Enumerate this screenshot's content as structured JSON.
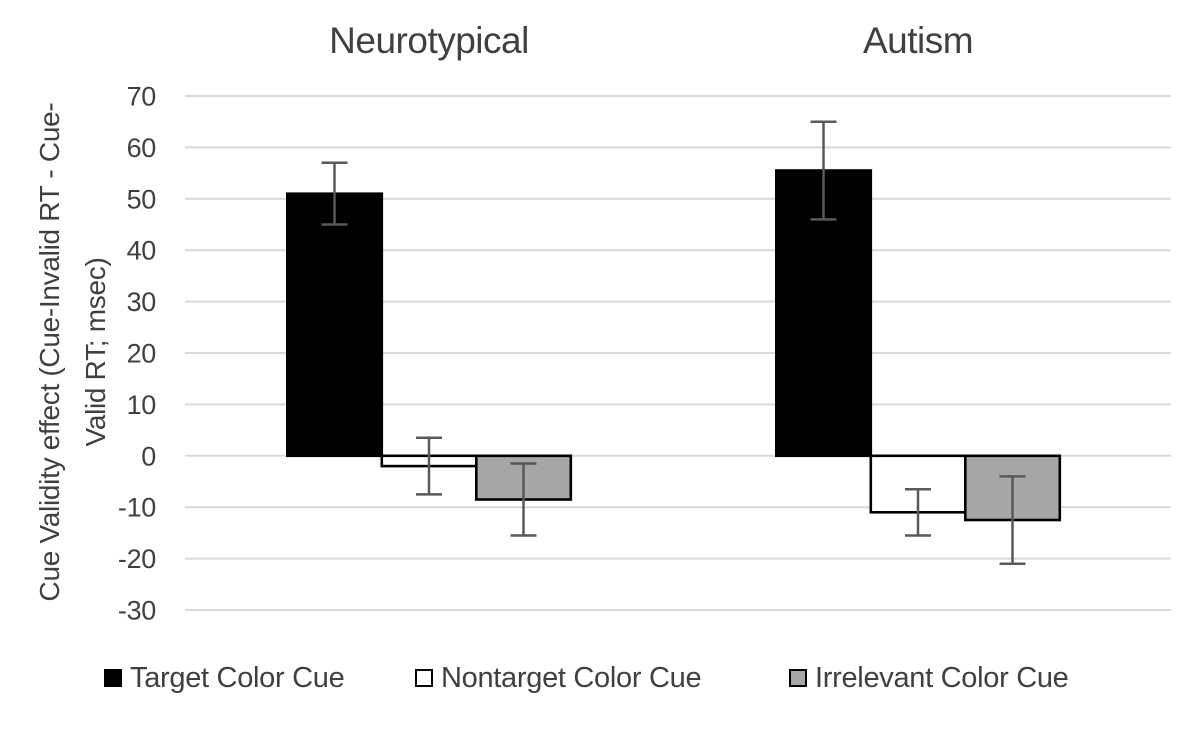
{
  "chart_data": {
    "type": "bar",
    "group_titles": [
      "Neurotypical",
      "Autism"
    ],
    "categories": [
      "Neurotypical",
      "Autism"
    ],
    "series": [
      {
        "name": "Target Color Cue",
        "fill": "#000000",
        "border": "#000000",
        "values": [
          51,
          55.5
        ],
        "errors": [
          6,
          9.5
        ]
      },
      {
        "name": "Nontarget Color Cue",
        "fill": "#ffffff",
        "border": "#000000",
        "values": [
          -2,
          -11
        ],
        "errors": [
          5.5,
          4.5
        ]
      },
      {
        "name": "Irrelevant Color Cue",
        "fill": "#a6a6a6",
        "border": "#000000",
        "values": [
          -8.5,
          -12.5
        ],
        "errors": [
          7,
          8.5
        ]
      }
    ],
    "ylabel": "Cue Validity effect (Cue-Invalid RT - Cue-Valid RT; msec)",
    "ylabel_lines": [
      "Cue Validity effect (Cue-Invalid RT - Cue-",
      "Valid RT; msec)"
    ],
    "yticks": [
      70,
      60,
      50,
      40,
      30,
      20,
      10,
      0,
      -10,
      -20,
      -30
    ],
    "ylim": [
      -30,
      70
    ],
    "grid": true,
    "legend_position": "bottom",
    "colors": {
      "grid": "#d9d9d9",
      "error_bar": "#595959",
      "text": "#404040",
      "background": "#ffffff"
    }
  }
}
